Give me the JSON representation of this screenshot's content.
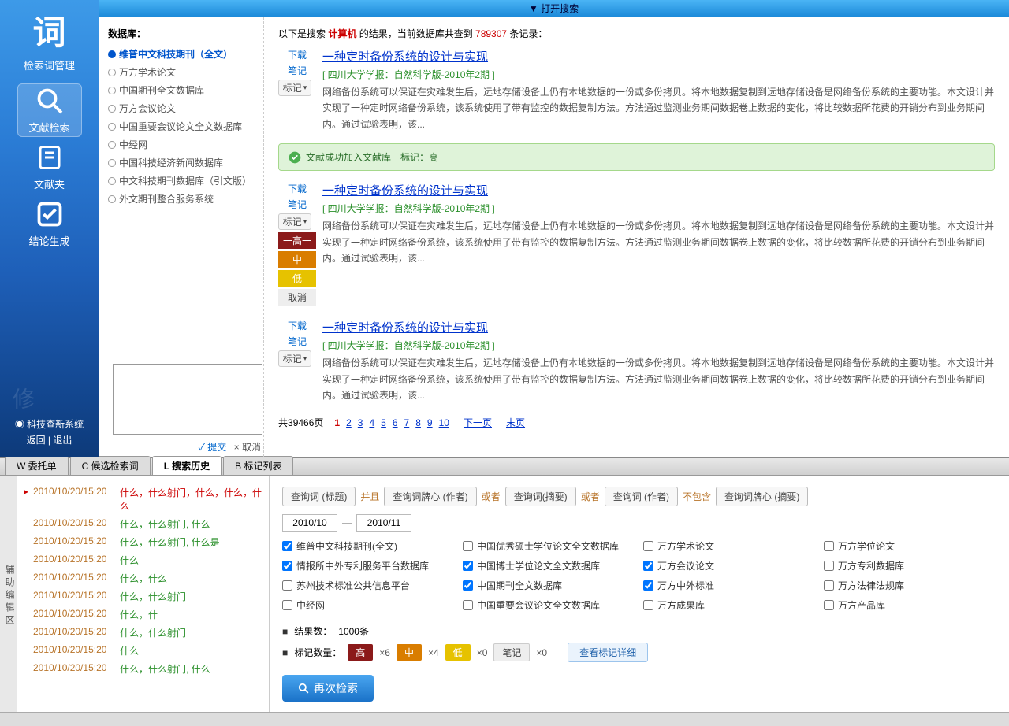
{
  "sidebar": {
    "brand": "词",
    "brandSub": "检索词管理",
    "nav": [
      {
        "label": "文献检索",
        "active": true
      },
      {
        "label": "文献夹",
        "active": false
      },
      {
        "label": "结论生成",
        "active": false
      }
    ],
    "systemLink": "科技查新系统",
    "back": "返回",
    "exit": "退出"
  },
  "openBar": "▼ 打开搜索",
  "dbPanel": {
    "title": "数据库：",
    "items": [
      {
        "label": "维普中文科技期刊（全文）",
        "selected": true
      },
      {
        "label": "万方学术论文"
      },
      {
        "label": "中国期刊全文数据库"
      },
      {
        "label": "万方会议论文"
      },
      {
        "label": "中国重要会议论文全文数据库"
      },
      {
        "label": "中经网"
      },
      {
        "label": "中国科技经济新闻数据库"
      },
      {
        "label": "中文科技期刊数据库（引文版）"
      },
      {
        "label": "外文期刊整合服务系统"
      }
    ],
    "submit": "✓ 提交",
    "cancel": "× 取消"
  },
  "results": {
    "prefix": "以下是搜索 ",
    "keyword": "计算机",
    "mid": " 的结果，当前数据库共查到 ",
    "count": "789307",
    "suffix": " 条记录：",
    "actions": {
      "download": "下载",
      "note": "笔记",
      "tag": "标记"
    },
    "tagOptions": {
      "high": "一高一",
      "mid": "中",
      "low": "低",
      "cancel": "取消"
    },
    "successMsg": "文献成功加入文献库　标记：高",
    "items": [
      {
        "title": "一种定时备份系统的设计与实现",
        "source": "四川大学学报：自然科学版-2010年2期",
        "abstract": "网络备份系统可以保证在灾难发生后，远地存储设备上仍有本地数据的一份或多份拷贝。将本地数据复制到远地存储设备是网络备份系统的主要功能。本文设计并实现了一种定时网络备份系统，该系统使用了带有监控的数据复制方法。方法通过监测业务期间数据卷上数据的变化，将比较数据所花费的开销分布到业务期间内。通过试验表明，该...",
        "showPop": false
      },
      {
        "title": "一种定时备份系统的设计与实现",
        "source": "四川大学学报：自然科学版-2010年2期",
        "abstract": "网络备份系统可以保证在灾难发生后，远地存储设备上仍有本地数据的一份或多份拷贝。将本地数据复制到远地存储设备是网络备份系统的主要功能。本文设计并实现了一种定时网络备份系统，该系统使用了带有监控的数据复制方法。方法通过监测业务期间数据卷上数据的变化，将比较数据所花费的开销分布到业务期间内。通过试验表明，该...",
        "showPop": true
      },
      {
        "title": "一种定时备份系统的设计与实现",
        "source": "四川大学学报：自然科学版-2010年2期",
        "abstract": "网络备份系统可以保证在灾难发生后，远地存储设备上仍有本地数据的一份或多份拷贝。将本地数据复制到远地存储设备是网络备份系统的主要功能。本文设计并实现了一种定时网络备份系统，该系统使用了带有监控的数据复制方法。方法通过监测业务期间数据卷上数据的变化，将比较数据所花费的开销分布到业务期间内。通过试验表明，该...",
        "showPop": false
      }
    ],
    "pager": {
      "totalPrefix": "共",
      "totalPages": "39466",
      "totalSuffix": "页",
      "current": 1,
      "pages": [
        "1",
        "2",
        "3",
        "4",
        "5",
        "6",
        "7",
        "8",
        "9",
        "10"
      ],
      "next": "下一页",
      "last": "末页"
    }
  },
  "tabs": [
    {
      "key": "W",
      "label": "W 委托单"
    },
    {
      "key": "C",
      "label": "C 候选检索词"
    },
    {
      "key": "L",
      "label": "L 搜索历史",
      "active": true
    },
    {
      "key": "B",
      "label": "B 标记列表"
    }
  ],
  "auxLabel": "辅助编辑区",
  "history": [
    {
      "time": "2010/10/20/15:20",
      "q": "什么，什么射门，什么，什么，什么",
      "sel": true
    },
    {
      "time": "2010/10/20/15:20",
      "q": "什么，什么射门, 什么"
    },
    {
      "time": "2010/10/20/15:20",
      "q": "什么，什么射门, 什么是"
    },
    {
      "time": "2010/10/20/15:20",
      "q": "什么"
    },
    {
      "time": "2010/10/20/15:20",
      "q": "什么，什么"
    },
    {
      "time": "2010/10/20/15:20",
      "q": "什么，什么射门"
    },
    {
      "time": "2010/10/20/15:20",
      "q": "什么，什"
    },
    {
      "time": "2010/10/20/15:20",
      "q": "什么，什么射门"
    },
    {
      "time": "2010/10/20/15:20",
      "q": "什么"
    },
    {
      "time": "2010/10/20/15:20",
      "q": "什么，什么射门, 什么"
    }
  ],
  "query": {
    "chips": [
      {
        "t": "查询词 (标题)"
      },
      {
        "op": "并且"
      },
      {
        "t": "查询词牌心 (作者)"
      },
      {
        "op": "或者"
      },
      {
        "t": "查询词(摘要)"
      },
      {
        "op": "或者"
      },
      {
        "t": "查询词 (作者)"
      },
      {
        "op": "不包含"
      },
      {
        "t": "查询词牌心 (摘要)"
      }
    ],
    "dateFrom": "2010/10",
    "dateTo": "2010/11",
    "dash": "—",
    "dbs": [
      {
        "l": "维普中文科技期刊(全文)",
        "c": true
      },
      {
        "l": "中国优秀硕士学位论文全文数据库",
        "c": false
      },
      {
        "l": "万方学术论文",
        "c": false
      },
      {
        "l": "万方学位论文",
        "c": false
      },
      {
        "l": "情报所中外专利服务平台数据库",
        "c": true
      },
      {
        "l": "中国博士学位论文全文数据库",
        "c": true
      },
      {
        "l": "万方会议论文",
        "c": true
      },
      {
        "l": "万方专利数据库",
        "c": false
      },
      {
        "l": "苏州技术标准公共信息平台",
        "c": false
      },
      {
        "l": "中国期刊全文数据库",
        "c": true
      },
      {
        "l": "万方中外标准",
        "c": true
      },
      {
        "l": "万方法律法规库",
        "c": false
      },
      {
        "l": "中经网",
        "c": false
      },
      {
        "l": "中国重要会议论文全文数据库",
        "c": false
      },
      {
        "l": "万方成果库",
        "c": false
      },
      {
        "l": "万方产品库",
        "c": false
      }
    ],
    "resultCountLabel": "结果数：",
    "resultCount": "1000条",
    "tagCountLabel": "标记数量：",
    "tagCounts": {
      "high": "高",
      "highN": "×6",
      "mid": "中",
      "midN": "×4",
      "low": "低",
      "lowN": "×0",
      "note": "笔记",
      "noteN": "×0"
    },
    "viewDetail": "查看标记详细",
    "researchBtn": "再次检索"
  }
}
